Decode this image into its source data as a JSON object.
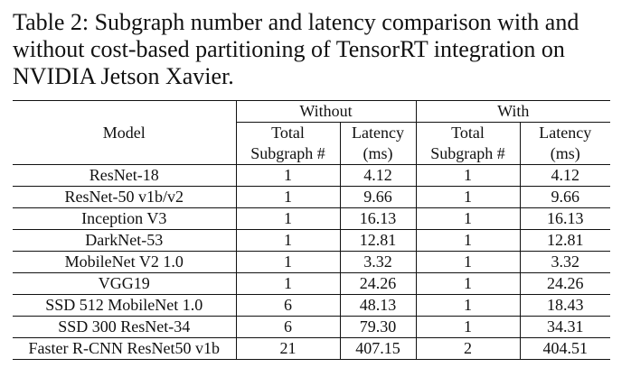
{
  "caption": {
    "line1": "Table 2: Subgraph number and latency comparison with and",
    "line2": "without cost-based partitioning of TensorRT integration on",
    "line3": "NVIDIA Jetson Xavier."
  },
  "table": {
    "model_header": "Model",
    "group_without": "Without",
    "group_with": "With",
    "sub_headers": {
      "subgraph_line1": "Total",
      "subgraph_line2": "Subgraph #",
      "latency_line1": "Latency",
      "latency_line2": "(ms)"
    },
    "rows": [
      {
        "model": "ResNet-18",
        "wo_subgraph": "1",
        "wo_latency": "4.12",
        "w_subgraph": "1",
        "w_latency": "4.12"
      },
      {
        "model": "ResNet-50 v1b/v2",
        "wo_subgraph": "1",
        "wo_latency": "9.66",
        "w_subgraph": "1",
        "w_latency": "9.66"
      },
      {
        "model": "Inception V3",
        "wo_subgraph": "1",
        "wo_latency": "16.13",
        "w_subgraph": "1",
        "w_latency": "16.13"
      },
      {
        "model": "DarkNet-53",
        "wo_subgraph": "1",
        "wo_latency": "12.81",
        "w_subgraph": "1",
        "w_latency": "12.81"
      },
      {
        "model": "MobileNet V2 1.0",
        "wo_subgraph": "1",
        "wo_latency": "3.32",
        "w_subgraph": "1",
        "w_latency": "3.32"
      },
      {
        "model": "VGG19",
        "wo_subgraph": "1",
        "wo_latency": "24.26",
        "w_subgraph": "1",
        "w_latency": "24.26"
      },
      {
        "model": "SSD 512 MobileNet 1.0",
        "wo_subgraph": "6",
        "wo_latency": "48.13",
        "w_subgraph": "1",
        "w_latency": "18.43"
      },
      {
        "model": "SSD 300 ResNet-34",
        "wo_subgraph": "6",
        "wo_latency": "79.30",
        "w_subgraph": "1",
        "w_latency": "34.31"
      },
      {
        "model": "Faster R-CNN ResNet50 v1b",
        "wo_subgraph": "21",
        "wo_latency": "407.15",
        "w_subgraph": "2",
        "w_latency": "404.51"
      }
    ]
  }
}
